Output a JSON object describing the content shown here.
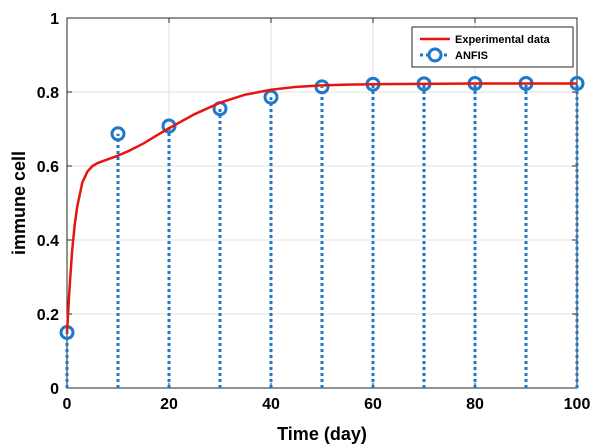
{
  "chart_data": {
    "type": "line",
    "xlabel": "Time (day)",
    "ylabel": "immune cell",
    "xlim": [
      0,
      100
    ],
    "ylim": [
      0,
      1
    ],
    "xticks": [
      0,
      20,
      40,
      60,
      80,
      100
    ],
    "yticks": [
      0,
      0.2,
      0.4,
      0.6,
      0.8,
      1
    ],
    "xtick_labels": [
      "0",
      "20",
      "40",
      "60",
      "80",
      "100"
    ],
    "ytick_labels": [
      "0",
      "0.2",
      "0.4",
      "0.6",
      "0.8",
      "1"
    ],
    "grid": true,
    "legend_position": "top-right",
    "series": [
      {
        "name": "Experimental data",
        "style": "solid-line",
        "color": "#e8140f",
        "x": [
          0,
          0.5,
          1,
          1.5,
          2,
          3,
          4,
          5,
          6,
          8,
          10,
          12,
          15,
          18,
          20,
          25,
          30,
          35,
          40,
          45,
          50,
          55,
          60,
          70,
          80,
          90,
          100
        ],
        "y": [
          0.15,
          0.27,
          0.37,
          0.44,
          0.49,
          0.555,
          0.585,
          0.6,
          0.608,
          0.618,
          0.628,
          0.64,
          0.661,
          0.686,
          0.702,
          0.74,
          0.771,
          0.793,
          0.806,
          0.814,
          0.818,
          0.82,
          0.821,
          0.822,
          0.823,
          0.823,
          0.823
        ]
      },
      {
        "name": "ANFIS",
        "style": "stem",
        "color": "#1f78c8",
        "x": [
          0,
          10,
          20,
          30,
          40,
          50,
          60,
          70,
          80,
          90,
          100
        ],
        "y": [
          0.15,
          0.687,
          0.708,
          0.755,
          0.786,
          0.814,
          0.821,
          0.822,
          0.823,
          0.823,
          0.823
        ]
      }
    ]
  }
}
